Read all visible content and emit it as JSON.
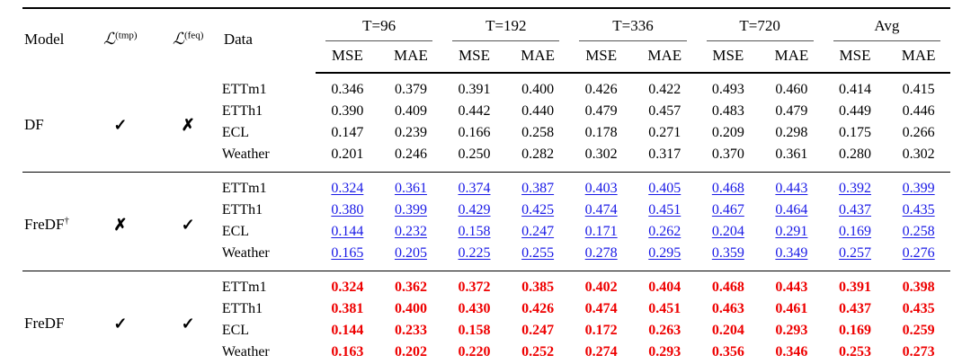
{
  "colors": {
    "second_best_blue": "#1a1ae6",
    "best_red": "#ee0000",
    "text": "#000000",
    "rule": "#000000"
  },
  "header": {
    "model": "Model",
    "loss_tmp": {
      "base": "ℒ",
      "sup": "(tmp)"
    },
    "loss_feq": {
      "base": "ℒ",
      "sup": "(feq)"
    },
    "data": "Data",
    "groups": [
      {
        "label": "T=96"
      },
      {
        "label": "T=192"
      },
      {
        "label": "T=336"
      },
      {
        "label": "T=720"
      },
      {
        "label": "Avg"
      }
    ],
    "metrics": [
      "MSE",
      "MAE"
    ]
  },
  "blocks": [
    {
      "model": "DF",
      "model_sup": "",
      "tmp_mark": "✓",
      "feq_mark": "✗",
      "highlight": "none",
      "rows": [
        {
          "dataset": "ETTm1",
          "values": [
            "0.346",
            "0.379",
            "0.391",
            "0.400",
            "0.426",
            "0.422",
            "0.493",
            "0.460",
            "0.414",
            "0.415"
          ]
        },
        {
          "dataset": "ETTh1",
          "values": [
            "0.390",
            "0.409",
            "0.442",
            "0.440",
            "0.479",
            "0.457",
            "0.483",
            "0.479",
            "0.449",
            "0.446"
          ]
        },
        {
          "dataset": "ECL",
          "values": [
            "0.147",
            "0.239",
            "0.166",
            "0.258",
            "0.178",
            "0.271",
            "0.209",
            "0.298",
            "0.175",
            "0.266"
          ]
        },
        {
          "dataset": "Weather",
          "values": [
            "0.201",
            "0.246",
            "0.250",
            "0.282",
            "0.302",
            "0.317",
            "0.370",
            "0.361",
            "0.280",
            "0.302"
          ]
        }
      ]
    },
    {
      "model": "FreDF",
      "model_sup": "†",
      "tmp_mark": "✗",
      "feq_mark": "✓",
      "highlight": "second_best",
      "rows": [
        {
          "dataset": "ETTm1",
          "values": [
            "0.324",
            "0.361",
            "0.374",
            "0.387",
            "0.403",
            "0.405",
            "0.468",
            "0.443",
            "0.392",
            "0.399"
          ]
        },
        {
          "dataset": "ETTh1",
          "values": [
            "0.380",
            "0.399",
            "0.429",
            "0.425",
            "0.474",
            "0.451",
            "0.467",
            "0.464",
            "0.437",
            "0.435"
          ]
        },
        {
          "dataset": "ECL",
          "values": [
            "0.144",
            "0.232",
            "0.158",
            "0.247",
            "0.171",
            "0.262",
            "0.204",
            "0.291",
            "0.169",
            "0.258"
          ]
        },
        {
          "dataset": "Weather",
          "values": [
            "0.165",
            "0.205",
            "0.225",
            "0.255",
            "0.278",
            "0.295",
            "0.359",
            "0.349",
            "0.257",
            "0.276"
          ]
        }
      ]
    },
    {
      "model": "FreDF",
      "model_sup": "",
      "tmp_mark": "✓",
      "feq_mark": "✓",
      "highlight": "best",
      "rows": [
        {
          "dataset": "ETTm1",
          "values": [
            "0.324",
            "0.362",
            "0.372",
            "0.385",
            "0.402",
            "0.404",
            "0.468",
            "0.443",
            "0.391",
            "0.398"
          ]
        },
        {
          "dataset": "ETTh1",
          "values": [
            "0.381",
            "0.400",
            "0.430",
            "0.426",
            "0.474",
            "0.451",
            "0.463",
            "0.461",
            "0.437",
            "0.435"
          ]
        },
        {
          "dataset": "ECL",
          "values": [
            "0.144",
            "0.233",
            "0.158",
            "0.247",
            "0.172",
            "0.263",
            "0.204",
            "0.293",
            "0.169",
            "0.259"
          ]
        },
        {
          "dataset": "Weather",
          "values": [
            "0.163",
            "0.202",
            "0.220",
            "0.252",
            "0.274",
            "0.293",
            "0.356",
            "0.346",
            "0.253",
            "0.273"
          ]
        }
      ]
    }
  ]
}
